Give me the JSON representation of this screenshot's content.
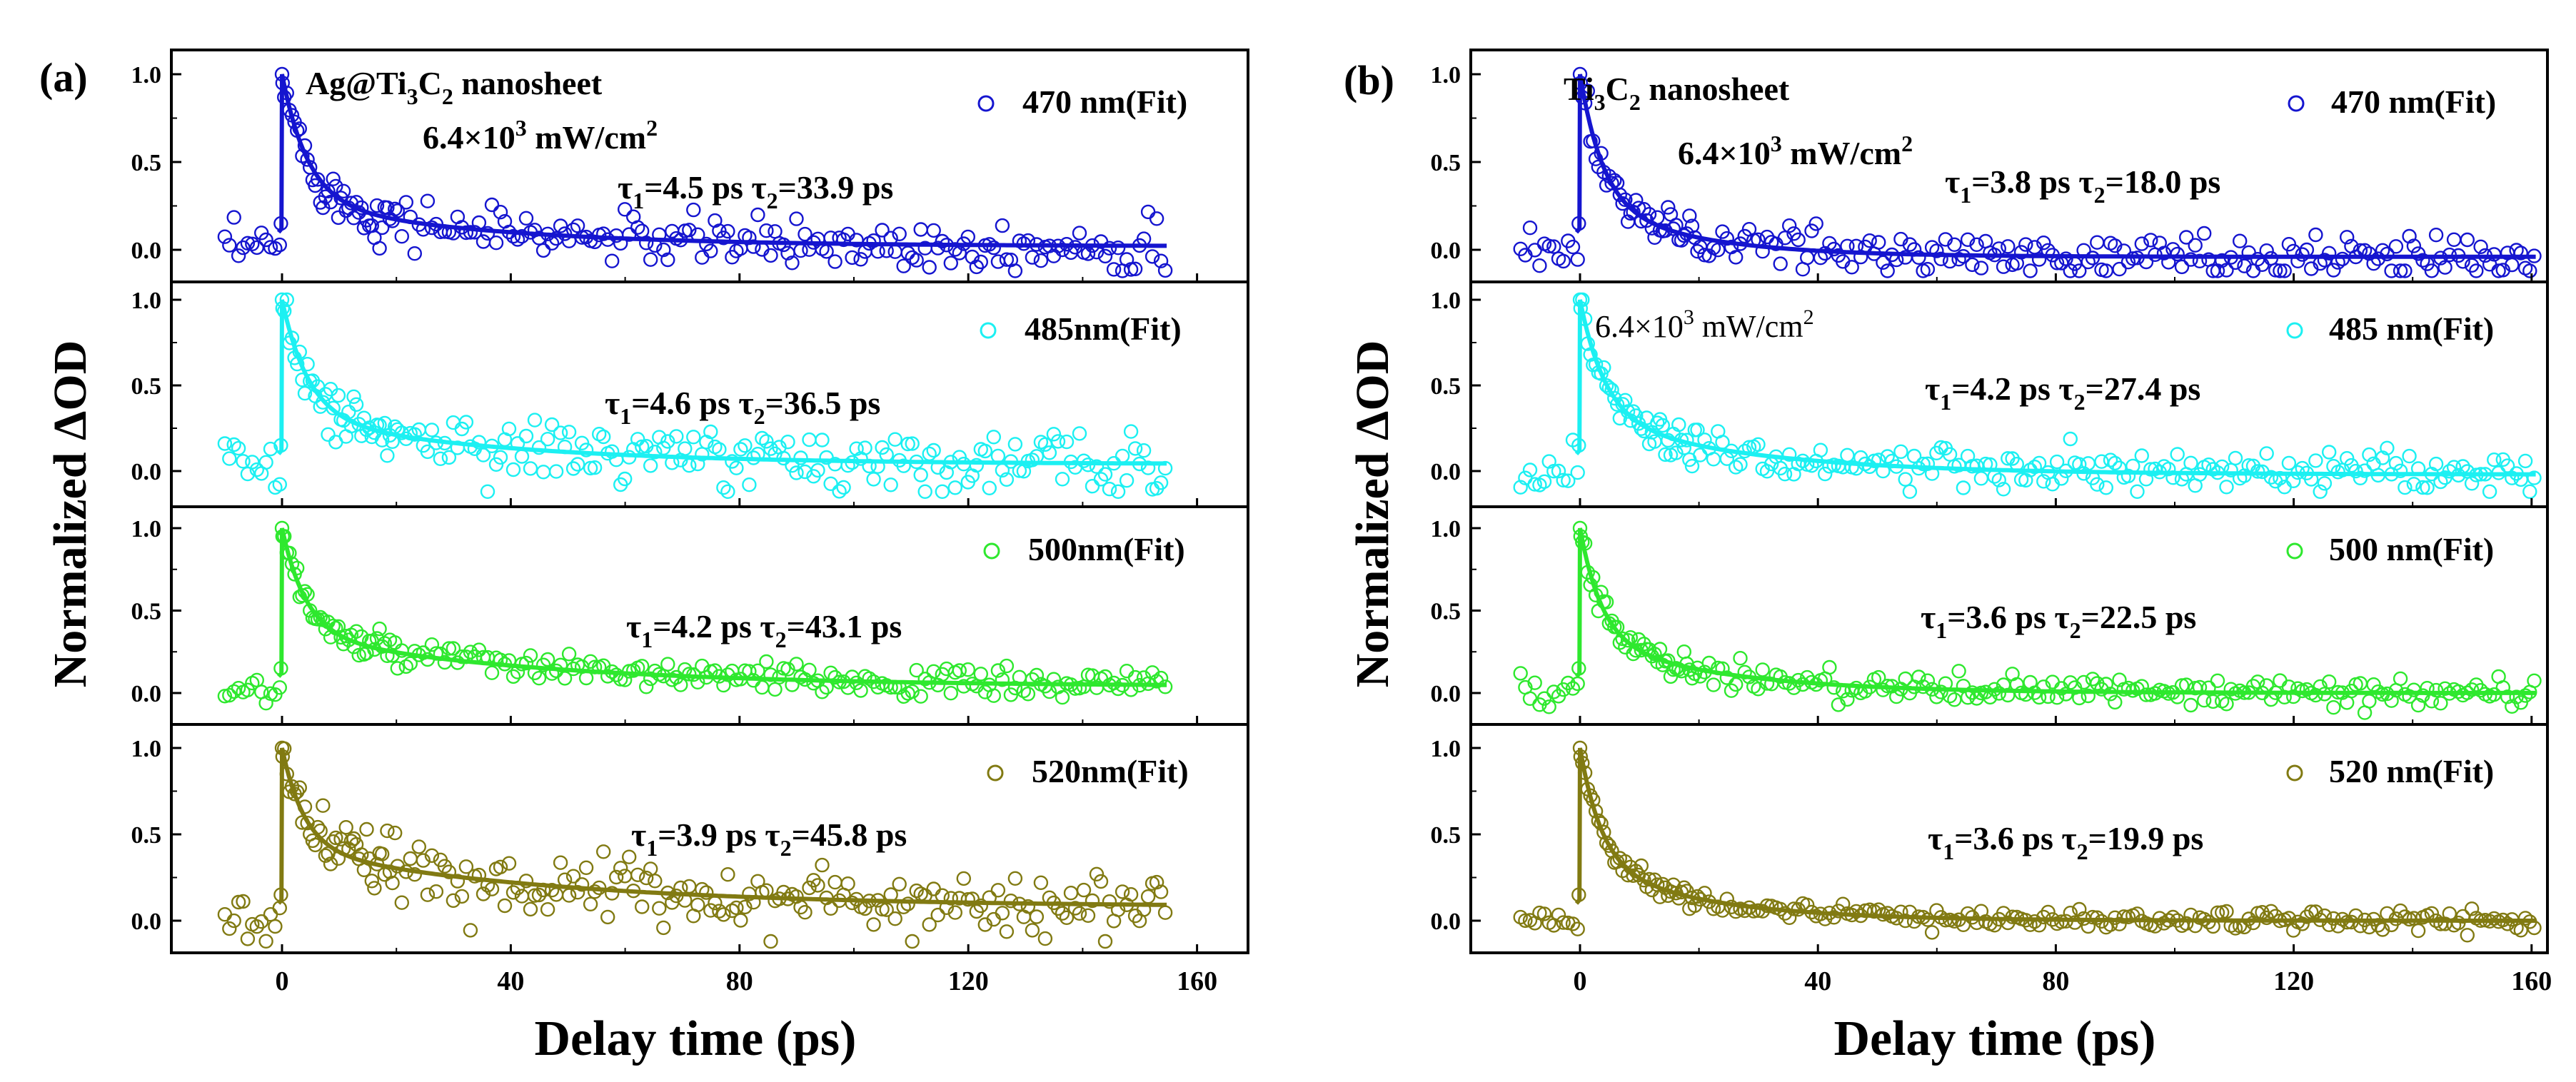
{
  "chart_data": [
    {
      "type": "scatter",
      "panel_label": "(a)",
      "title": "",
      "xlabel": "Delay time (ps)",
      "ylabel": "Normalized ΔOD",
      "xlim": [
        -12,
        162
      ],
      "x_ticks": [
        "0",
        "40",
        "80",
        "120",
        "160"
      ],
      "y_ticks": [
        "0.0",
        "0.5",
        "1.0"
      ],
      "sample_label": "Ag@Ti3C2 nanosheet",
      "power_label": "6.4×10³ mW/cm²",
      "x_end": 155,
      "series": [
        {
          "name": "470 nm(Fit)",
          "legend": "470 nm(Fit)",
          "color": "#1515cf",
          "tau1": 4.5,
          "tau2": 33.9,
          "tau_text": "τ1=4.5 ps τ2=33.9 ps",
          "amp_fast": 0.72,
          "offset": 0.02,
          "noise": 0.07
        },
        {
          "name": "485 nm(Fit)",
          "legend": "485nm(Fit)",
          "color": "#1cf0f2",
          "tau1": 4.6,
          "tau2": 36.5,
          "tau_text": "τ1=4.6 ps τ2=36.5 ps",
          "amp_fast": 0.68,
          "offset": 0.04,
          "noise": 0.09
        },
        {
          "name": "500 nm(Fit)",
          "legend": "500nm(Fit)",
          "color": "#2ee82e",
          "tau1": 4.2,
          "tau2": 43.1,
          "tau_text": "τ1=4.2 ps τ2=43.1 ps",
          "amp_fast": 0.64,
          "offset": 0.04,
          "noise": 0.045
        },
        {
          "name": "520 nm(Fit)",
          "legend": "520nm(Fit)",
          "color": "#817a12",
          "tau1": 3.9,
          "tau2": 45.8,
          "tau_text": "τ1=3.9 ps τ2=45.8 ps",
          "amp_fast": 0.58,
          "offset": 0.08,
          "noise": 0.09
        }
      ]
    },
    {
      "type": "scatter",
      "panel_label": "(b)",
      "title": "",
      "xlabel": "Delay time (ps)",
      "ylabel": "Normalized ΔOD",
      "xlim": [
        -12,
        164
      ],
      "x_ticks": [
        "0",
        "40",
        "80",
        "120",
        "160"
      ],
      "y_ticks": [
        "0.0",
        "0.5",
        "1.0"
      ],
      "sample_label": "Ti3C2 nanosheet",
      "power_label": "6.4×10³ mW/cm²",
      "power_label_2": "6.4×10³ mW/cm²",
      "x_end": 161,
      "series": [
        {
          "name": "470 nm(Fit)",
          "legend": "470 nm(Fit)",
          "color": "#1515cf",
          "tau1": 3.8,
          "tau2": 18.0,
          "tau_text": "τ1=3.8 ps τ2=18.0 ps",
          "amp_fast": 0.72,
          "offset": -0.04,
          "noise": 0.06
        },
        {
          "name": "485 nm(Fit)",
          "legend": "485 nm(Fit)",
          "color": "#1cf0f2",
          "tau1": 4.2,
          "tau2": 27.4,
          "tau_text": "τ1=4.2 ps τ2=27.4 ps",
          "amp_fast": 0.68,
          "offset": -0.02,
          "noise": 0.065
        },
        {
          "name": "500 nm(Fit)",
          "legend": "500 nm(Fit)",
          "color": "#2ee82e",
          "tau1": 3.6,
          "tau2": 22.5,
          "tau_text": "τ1=3.6 ps τ2=22.5 ps",
          "amp_fast": 0.66,
          "offset": 0.0,
          "noise": 0.045
        },
        {
          "name": "520 nm(Fit)",
          "legend": "520 nm(Fit)",
          "color": "#817a12",
          "tau1": 3.6,
          "tau2": 19.9,
          "tau_text": "τ1=3.6 ps τ2=19.9 ps",
          "amp_fast": 0.66,
          "offset": 0.0,
          "noise": 0.03
        }
      ]
    }
  ]
}
